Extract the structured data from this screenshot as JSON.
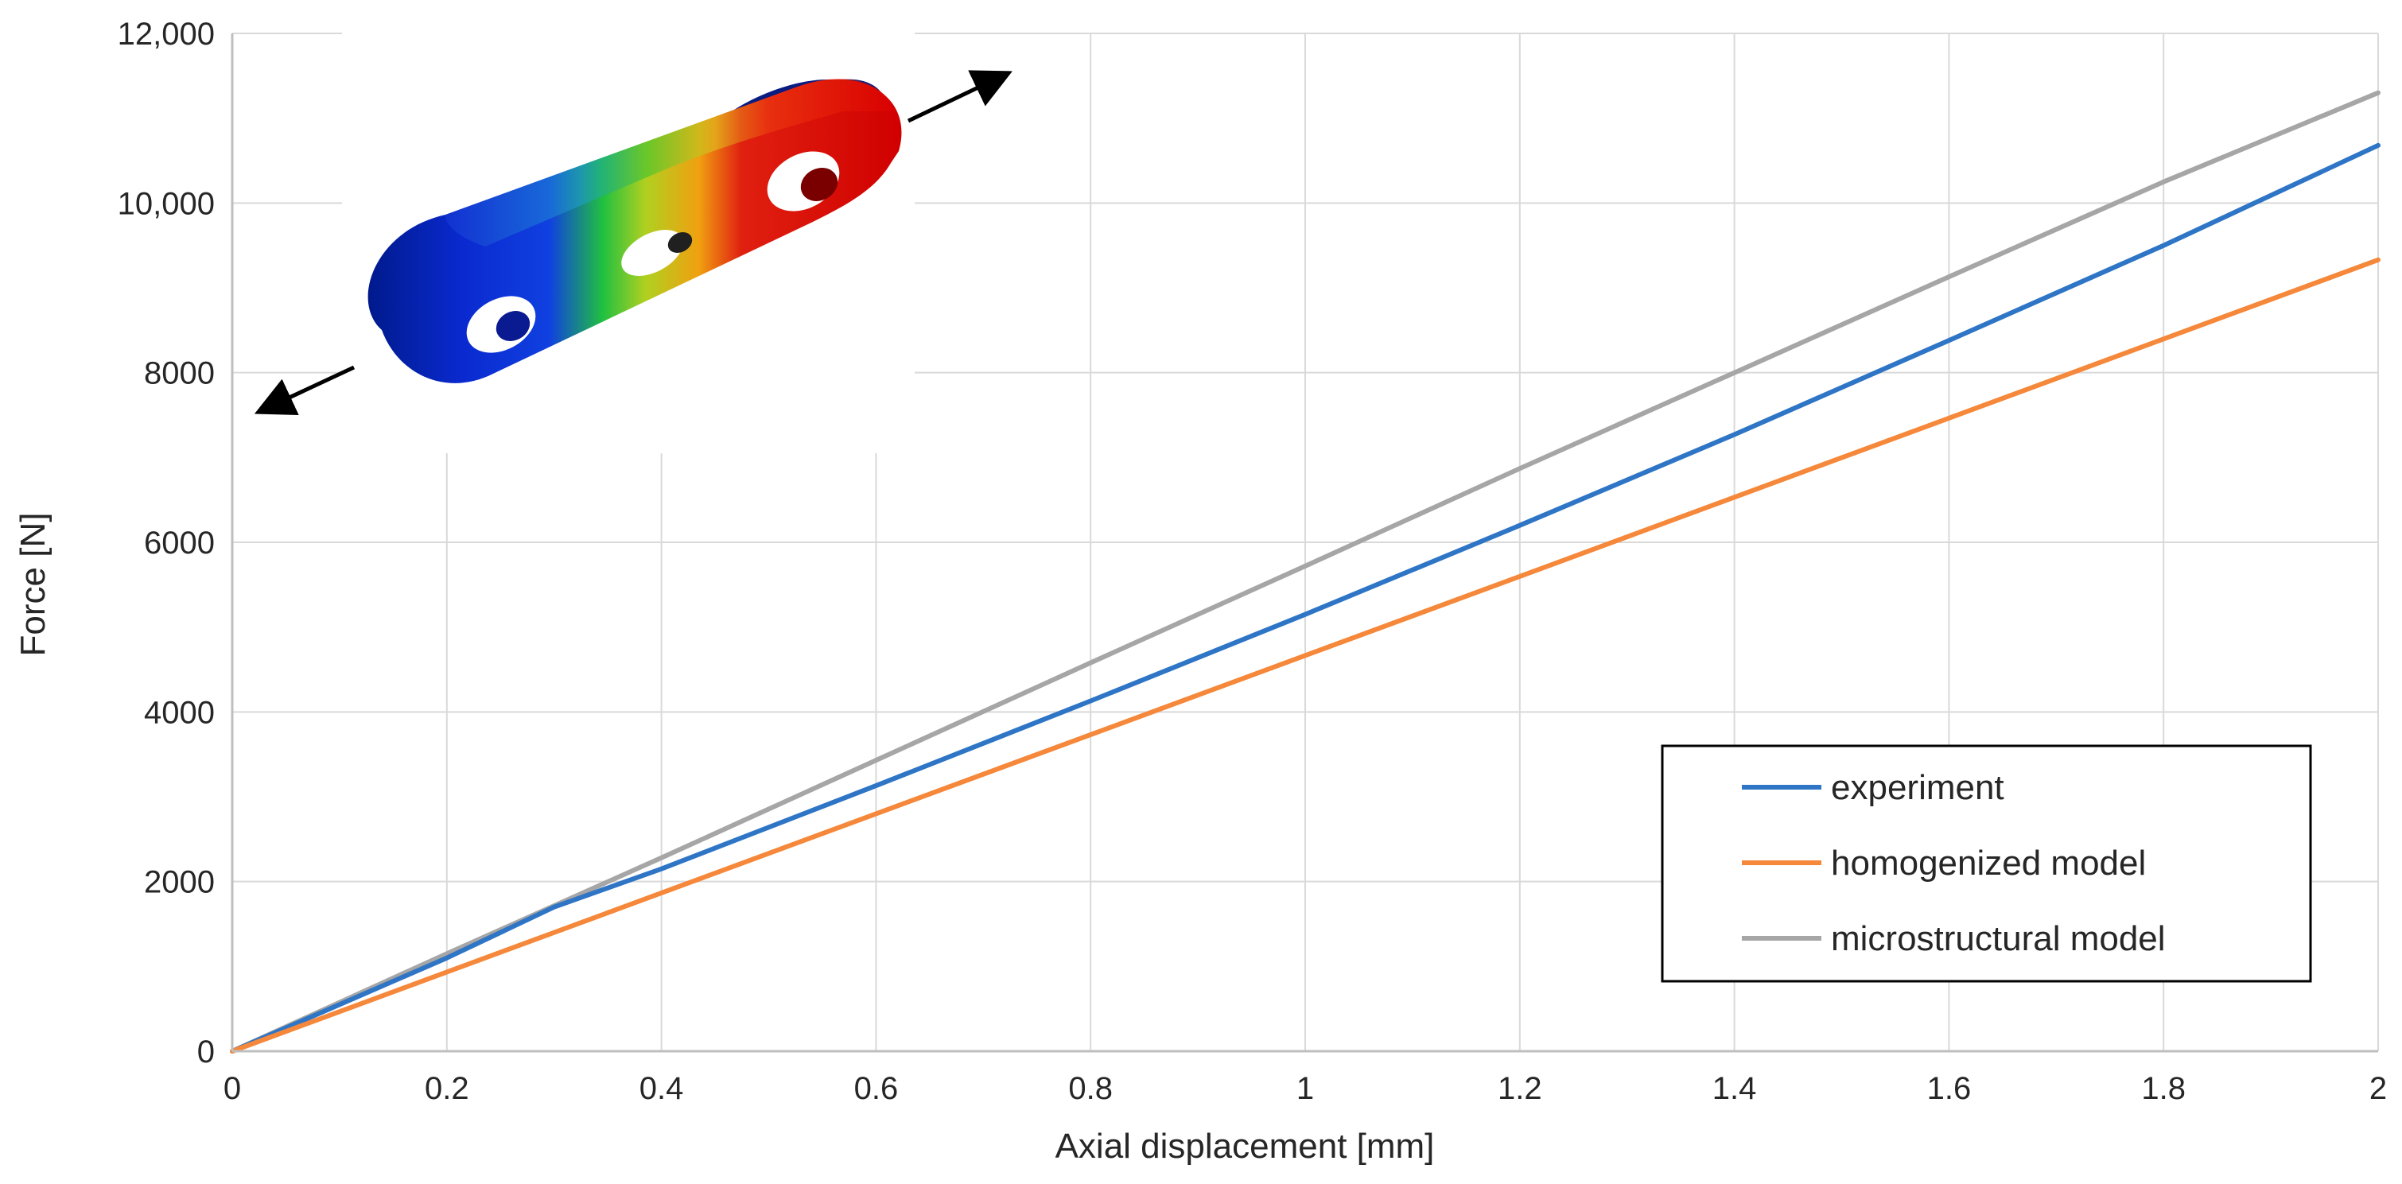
{
  "chart_data": {
    "type": "line",
    "title": "",
    "xlabel": "Axial displacement [mm]",
    "ylabel": "Force [N]",
    "xlim": [
      0,
      2
    ],
    "ylim": [
      0,
      12000
    ],
    "grid": true,
    "legend_position": "bottom-right",
    "x_ticks": [
      "0",
      "0.2",
      "0.4",
      "0.6",
      "0.8",
      "1",
      "1.2",
      "1.4",
      "1.6",
      "1.8",
      "2"
    ],
    "y_ticks": [
      "0",
      "2000",
      "4000",
      "6000",
      "8000",
      "10,000",
      "12,000"
    ],
    "series": [
      {
        "name": "experiment",
        "color": "#2e75c6",
        "x": [
          0,
          0.2,
          0.3,
          0.4,
          0.6,
          0.8,
          1.0,
          1.2,
          1.4,
          1.6,
          1.8,
          2.0
        ],
        "y": [
          0,
          1100,
          1700,
          2150,
          3130,
          4130,
          5150,
          6200,
          7270,
          8380,
          9500,
          10680
        ]
      },
      {
        "name": "homogenized model",
        "color": "#f5883a",
        "x": [
          0,
          2
        ],
        "y": [
          0,
          9330
        ]
      },
      {
        "name": "microstructural model",
        "color": "#a6a6a6",
        "x": [
          0,
          0.2,
          0.4,
          0.6,
          0.8,
          1.0,
          1.2,
          1.4,
          1.6,
          1.8,
          2.0
        ],
        "y": [
          0,
          1150,
          2280,
          3430,
          4580,
          5720,
          6870,
          8000,
          9130,
          10250,
          11300
        ]
      }
    ],
    "inset": {
      "description_icon": "fe-deformed-link-icon"
    }
  }
}
